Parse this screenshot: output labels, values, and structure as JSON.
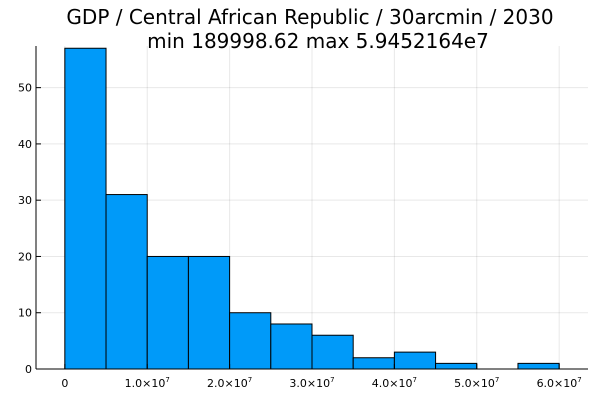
{
  "chart_data": {
    "type": "bar",
    "title": "GDP / Central African Republic / 30arcmin / 2030",
    "subtitle": "min 189998.62  max 5.9452164e7",
    "xlabel": "",
    "ylabel": "",
    "bin_edges": [
      0,
      5000000,
      10000000,
      15000000,
      20000000,
      25000000,
      30000000,
      35000000,
      40000000,
      45000000,
      50000000,
      55000000,
      60000000
    ],
    "values": [
      57,
      31,
      20,
      20,
      10,
      8,
      6,
      2,
      3,
      1,
      0,
      1
    ],
    "xlim": [
      -3500000,
      63500000
    ],
    "ylim": [
      0,
      57.4
    ],
    "x_ticks": [
      {
        "value": 0,
        "label": "0",
        "exp": ""
      },
      {
        "value": 10000000,
        "label": "1.0×10",
        "exp": "7"
      },
      {
        "value": 20000000,
        "label": "2.0×10",
        "exp": "7"
      },
      {
        "value": 30000000,
        "label": "3.0×10",
        "exp": "7"
      },
      {
        "value": 40000000,
        "label": "4.0×10",
        "exp": "7"
      },
      {
        "value": 50000000,
        "label": "5.0×10",
        "exp": "7"
      },
      {
        "value": 60000000,
        "label": "6.0×10",
        "exp": "7"
      }
    ],
    "y_ticks": [
      0,
      10,
      20,
      30,
      40,
      50
    ],
    "grid": true,
    "legend": "none",
    "bar_color": "#009af9"
  }
}
